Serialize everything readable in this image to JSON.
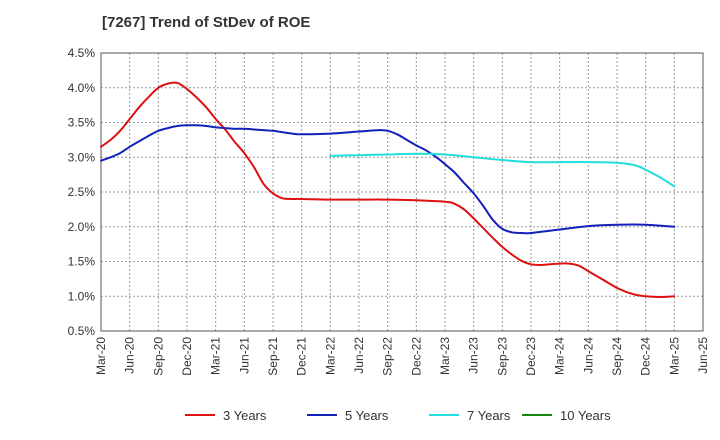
{
  "title": "[7267]  Trend of StDev of ROE",
  "chart_data": {
    "type": "line",
    "title": "[7267]  Trend of StDev of ROE",
    "xlabel": "",
    "ylabel": "",
    "ylim": [
      0.5,
      4.5
    ],
    "y_ticks": [
      0.5,
      1.0,
      1.5,
      2.0,
      2.5,
      3.0,
      3.5,
      4.0,
      4.5
    ],
    "y_tick_labels": [
      "0.5%",
      "1.0%",
      "1.5%",
      "2.0%",
      "2.5%",
      "3.0%",
      "3.5%",
      "4.0%",
      "4.5%"
    ],
    "x_ticks": [
      "Mar-20",
      "Jun-20",
      "Sep-20",
      "Dec-20",
      "Mar-21",
      "Jun-21",
      "Sep-21",
      "Dec-21",
      "Mar-22",
      "Jun-22",
      "Sep-22",
      "Dec-22",
      "Mar-23",
      "Jun-23",
      "Sep-23",
      "Dec-23",
      "Mar-24",
      "Jun-24",
      "Sep-24",
      "Dec-24",
      "Mar-25",
      "Jun-25"
    ],
    "grid": true,
    "legend_position": "bottom",
    "series": [
      {
        "name": "3 Years",
        "color": "#dd1111",
        "points": [
          [
            "Mar-20",
            3.15
          ],
          [
            "Apr-20",
            3.25
          ],
          [
            "May-20",
            3.38
          ],
          [
            "Jun-20",
            3.55
          ],
          [
            "Jul-20",
            3.72
          ],
          [
            "Aug-20",
            3.87
          ],
          [
            "Sep-20",
            4.0
          ],
          [
            "Oct-20",
            4.06
          ],
          [
            "Nov-20",
            4.07
          ],
          [
            "Dec-20",
            3.98
          ],
          [
            "Jan-21",
            3.86
          ],
          [
            "Feb-21",
            3.72
          ],
          [
            "Mar-21",
            3.55
          ],
          [
            "Apr-21",
            3.4
          ],
          [
            "May-21",
            3.22
          ],
          [
            "Jun-21",
            3.06
          ],
          [
            "Jul-21",
            2.86
          ],
          [
            "Aug-21",
            2.62
          ],
          [
            "Sep-21",
            2.48
          ],
          [
            "Oct-21",
            2.41
          ],
          [
            "Nov-21",
            2.4
          ],
          [
            "Dec-21",
            2.4
          ],
          [
            "Mar-22",
            2.39
          ],
          [
            "Jun-22",
            2.39
          ],
          [
            "Sep-22",
            2.39
          ],
          [
            "Dec-22",
            2.38
          ],
          [
            "Mar-23",
            2.36
          ],
          [
            "Apr-23",
            2.33
          ],
          [
            "May-23",
            2.25
          ],
          [
            "Jun-23",
            2.12
          ],
          [
            "Jul-23",
            1.98
          ],
          [
            "Aug-23",
            1.84
          ],
          [
            "Sep-23",
            1.71
          ],
          [
            "Oct-23",
            1.6
          ],
          [
            "Nov-23",
            1.51
          ],
          [
            "Dec-23",
            1.46
          ],
          [
            "Jan-24",
            1.45
          ],
          [
            "Feb-24",
            1.46
          ],
          [
            "Mar-24",
            1.47
          ],
          [
            "Apr-24",
            1.47
          ],
          [
            "May-24",
            1.44
          ],
          [
            "Jun-24",
            1.36
          ],
          [
            "Jul-24",
            1.28
          ],
          [
            "Aug-24",
            1.2
          ],
          [
            "Sep-24",
            1.12
          ],
          [
            "Oct-24",
            1.06
          ],
          [
            "Nov-24",
            1.02
          ],
          [
            "Dec-24",
            1.0
          ],
          [
            "Jan-25",
            0.99
          ],
          [
            "Feb-25",
            0.99
          ],
          [
            "Mar-25",
            1.0
          ]
        ]
      },
      {
        "name": "5 Years",
        "color": "#1122bb",
        "points": [
          [
            "Mar-20",
            2.95
          ],
          [
            "Apr-20",
            3.0
          ],
          [
            "May-20",
            3.06
          ],
          [
            "Jun-20",
            3.15
          ],
          [
            "Jul-20",
            3.23
          ],
          [
            "Aug-20",
            3.31
          ],
          [
            "Sep-20",
            3.38
          ],
          [
            "Oct-20",
            3.42
          ],
          [
            "Nov-20",
            3.45
          ],
          [
            "Dec-20",
            3.46
          ],
          [
            "Jan-21",
            3.46
          ],
          [
            "Feb-21",
            3.45
          ],
          [
            "Mar-21",
            3.43
          ],
          [
            "Apr-21",
            3.42
          ],
          [
            "May-21",
            3.41
          ],
          [
            "Jun-21",
            3.41
          ],
          [
            "Jul-21",
            3.4
          ],
          [
            "Aug-21",
            3.39
          ],
          [
            "Sep-21",
            3.38
          ],
          [
            "Oct-21",
            3.36
          ],
          [
            "Nov-21",
            3.34
          ],
          [
            "Dec-21",
            3.33
          ],
          [
            "Mar-22",
            3.34
          ],
          [
            "Jun-22",
            3.37
          ],
          [
            "Aug-22",
            3.39
          ],
          [
            "Sep-22",
            3.38
          ],
          [
            "Oct-22",
            3.33
          ],
          [
            "Nov-22",
            3.25
          ],
          [
            "Dec-22",
            3.17
          ],
          [
            "Jan-23",
            3.1
          ],
          [
            "Feb-23",
            3.01
          ],
          [
            "Mar-23",
            2.9
          ],
          [
            "Apr-23",
            2.78
          ],
          [
            "May-23",
            2.63
          ],
          [
            "Jun-23",
            2.48
          ],
          [
            "Jul-23",
            2.3
          ],
          [
            "Aug-23",
            2.1
          ],
          [
            "Sep-23",
            1.97
          ],
          [
            "Oct-23",
            1.92
          ],
          [
            "Nov-23",
            1.91
          ],
          [
            "Dec-23",
            1.91
          ],
          [
            "Mar-24",
            1.96
          ],
          [
            "Jun-24",
            2.01
          ],
          [
            "Sep-24",
            2.03
          ],
          [
            "Dec-24",
            2.03
          ],
          [
            "Mar-25",
            2.0
          ]
        ]
      },
      {
        "name": "7 Years",
        "color": "#22dddd",
        "points": [
          [
            "Mar-22",
            3.02
          ],
          [
            "Jun-22",
            3.03
          ],
          [
            "Sep-22",
            3.04
          ],
          [
            "Dec-22",
            3.05
          ],
          [
            "Mar-23",
            3.04
          ],
          [
            "Jun-23",
            3.0
          ],
          [
            "Sep-23",
            2.96
          ],
          [
            "Dec-23",
            2.93
          ],
          [
            "Mar-24",
            2.93
          ],
          [
            "Jun-24",
            2.93
          ],
          [
            "Sep-24",
            2.92
          ],
          [
            "Nov-24",
            2.88
          ],
          [
            "Dec-24",
            2.82
          ],
          [
            "Jan-25",
            2.75
          ],
          [
            "Feb-25",
            2.67
          ],
          [
            "Mar-25",
            2.58
          ]
        ]
      },
      {
        "name": "10 Years",
        "color": "#118811",
        "points": []
      }
    ]
  }
}
